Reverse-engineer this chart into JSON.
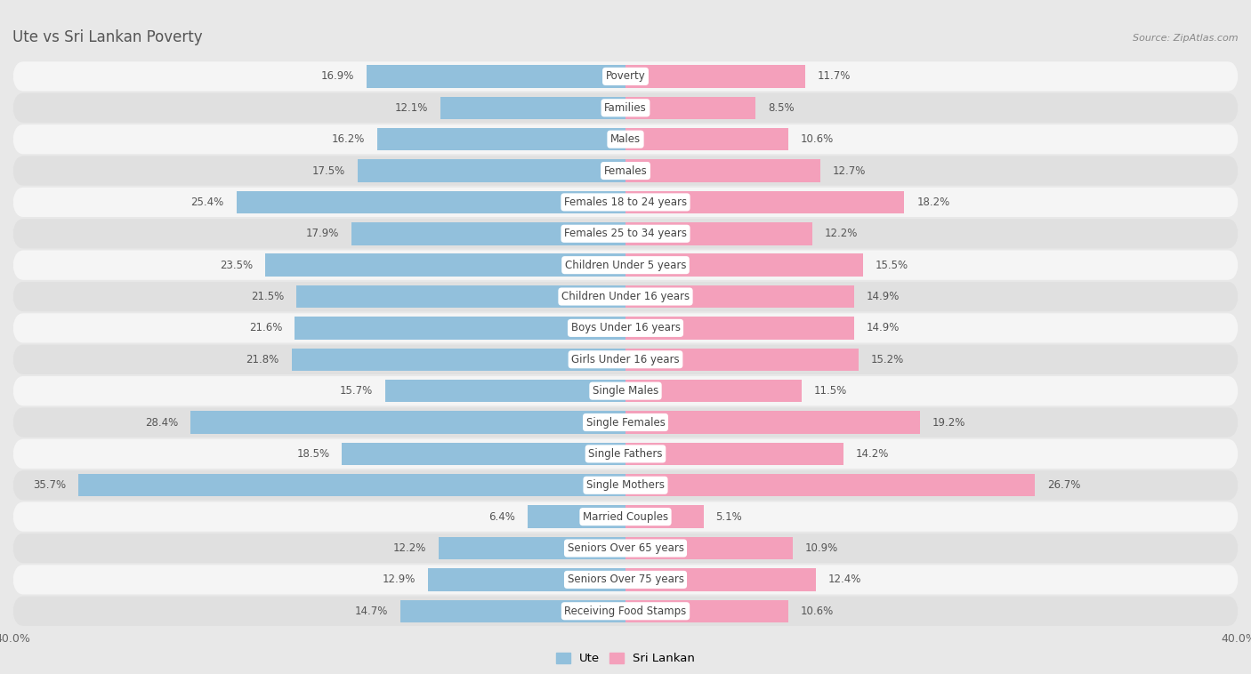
{
  "title": "Ute vs Sri Lankan Poverty",
  "source": "Source: ZipAtlas.com",
  "categories": [
    "Poverty",
    "Families",
    "Males",
    "Females",
    "Females 18 to 24 years",
    "Females 25 to 34 years",
    "Children Under 5 years",
    "Children Under 16 years",
    "Boys Under 16 years",
    "Girls Under 16 years",
    "Single Males",
    "Single Females",
    "Single Fathers",
    "Single Mothers",
    "Married Couples",
    "Seniors Over 65 years",
    "Seniors Over 75 years",
    "Receiving Food Stamps"
  ],
  "ute_values": [
    16.9,
    12.1,
    16.2,
    17.5,
    25.4,
    17.9,
    23.5,
    21.5,
    21.6,
    21.8,
    15.7,
    28.4,
    18.5,
    35.7,
    6.4,
    12.2,
    12.9,
    14.7
  ],
  "srilankan_values": [
    11.7,
    8.5,
    10.6,
    12.7,
    18.2,
    12.2,
    15.5,
    14.9,
    14.9,
    15.2,
    11.5,
    19.2,
    14.2,
    26.7,
    5.1,
    10.9,
    12.4,
    10.6
  ],
  "ute_color": "#92C0DC",
  "srilankan_color": "#F4A0BB",
  "background_color": "#e8e8e8",
  "row_bg_light": "#f5f5f5",
  "row_bg_dark": "#e0e0e0",
  "axis_max": 40.0,
  "label_fontsize": 8.5,
  "value_fontsize": 8.5,
  "title_fontsize": 12,
  "bar_height": 0.72
}
